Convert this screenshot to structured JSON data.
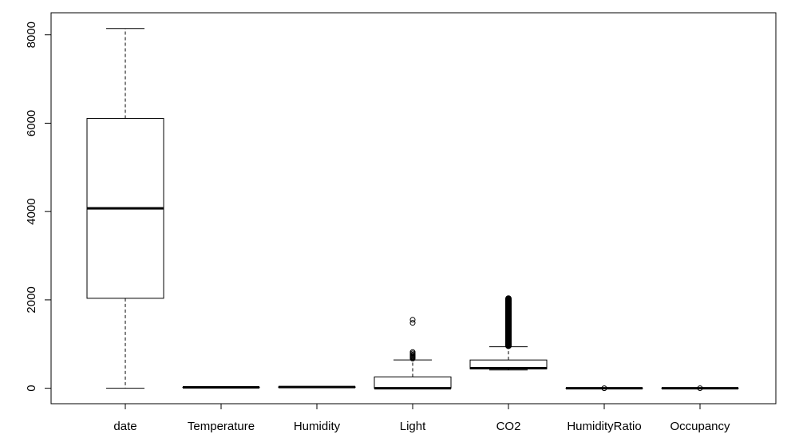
{
  "chart_data": {
    "type": "boxplot",
    "title": "",
    "xlabel": "",
    "ylabel": "",
    "ylim": [
      -350,
      8500
    ],
    "yticks": [
      0,
      2000,
      4000,
      6000,
      8000
    ],
    "grid": false,
    "categories": [
      "date",
      "Temperature",
      "Humidity",
      "Light",
      "CO2",
      "HumidityRatio",
      "Occupancy"
    ],
    "boxes": [
      {
        "name": "date",
        "whisker_low": 1,
        "q1": 2036,
        "median": 4072,
        "q3": 6108,
        "whisker_high": 8143,
        "outliers": []
      },
      {
        "name": "Temperature",
        "whisker_low": 19,
        "q1": 19.7,
        "median": 20.4,
        "q3": 21.4,
        "whisker_high": 23.2,
        "outliers": []
      },
      {
        "name": "Humidity",
        "whisker_low": 16.7,
        "q1": 20.2,
        "median": 26.2,
        "q3": 30.5,
        "whisker_high": 39.1,
        "outliers": []
      },
      {
        "name": "Light",
        "whisker_low": 0,
        "q1": 0,
        "median": 0,
        "q3": 256,
        "whisker_high": 640,
        "outliers": [
          670,
          690,
          705,
          720,
          740,
          760,
          790,
          820,
          1480,
          1550
        ]
      },
      {
        "name": "CO2",
        "whisker_low": 412,
        "q1": 440,
        "median": 453,
        "q3": 640,
        "whisker_high": 940,
        "outliers_range": [
          960,
          2030
        ]
      },
      {
        "name": "HumidityRatio",
        "whisker_low": 0.0027,
        "q1": 0.0031,
        "median": 0.0038,
        "q3": 0.0044,
        "whisker_high": 0.0065,
        "outliers": [
          0.0065
        ]
      },
      {
        "name": "Occupancy",
        "whisker_low": 0,
        "q1": 0,
        "median": 0,
        "q3": 0,
        "whisker_high": 0,
        "outliers": [
          1
        ]
      }
    ]
  }
}
